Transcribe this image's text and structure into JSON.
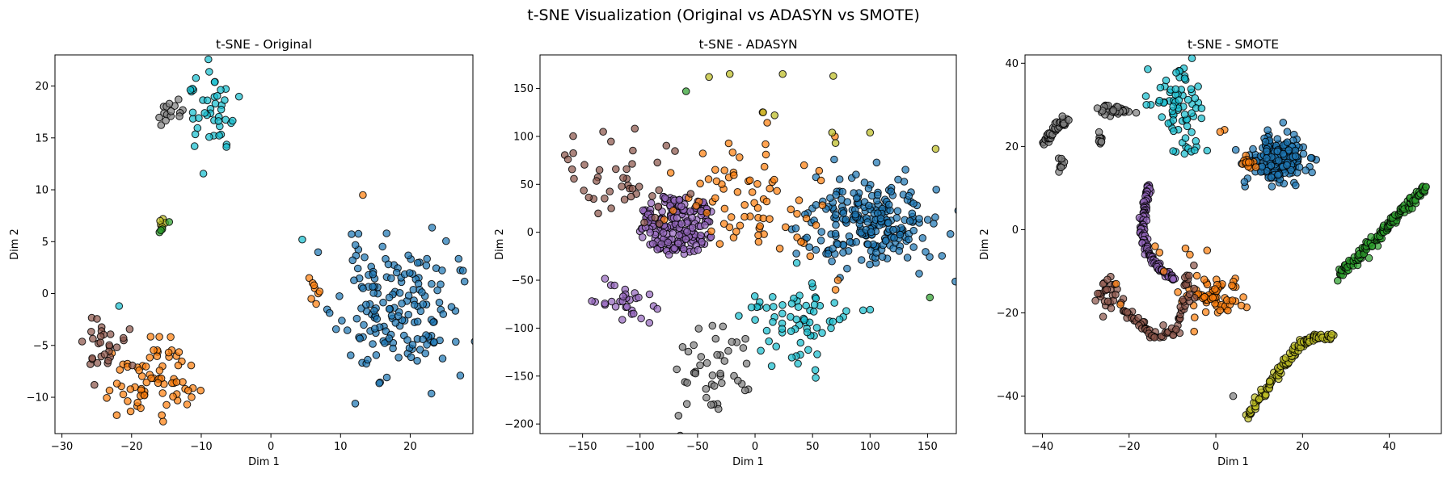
{
  "suptitle": "t-SNE Visualization (Original vs ADASYN vs SMOTE)",
  "colors": {
    "blue": "#1f77b4",
    "orange": "#ff7f0e",
    "green": "#2ca02c",
    "purple": "#9467bd",
    "brown": "#8c564b",
    "gray": "#7f7f7f",
    "olive": "#bcbd22",
    "cyan": "#17becf"
  },
  "chart_data": [
    {
      "type": "scatter",
      "title": "t-SNE - Original",
      "xlabel": "Dim 1",
      "ylabel": "Dim 2",
      "xlim": [
        -31,
        29
      ],
      "ylim": [
        -13.5,
        23
      ],
      "xticks": [
        -30,
        -20,
        -10,
        0,
        10,
        20
      ],
      "yticks": [
        -10,
        -5,
        0,
        5,
        10,
        15,
        20
      ],
      "grid": false,
      "clusters": [
        {
          "color": "blue",
          "kind": "blob",
          "cx": 18,
          "cy": -1.5,
          "sx": 4.2,
          "sy": 3.2,
          "n": 170,
          "seed": 11
        },
        {
          "color": "orange",
          "kind": "blob",
          "cx": -17,
          "cy": -8.2,
          "sx": 3.0,
          "sy": 1.7,
          "n": 75,
          "seed": 12
        },
        {
          "color": "brown",
          "kind": "blob",
          "cx": -24.5,
          "cy": -5.2,
          "sx": 1.8,
          "sy": 1.3,
          "n": 30,
          "seed": 13
        },
        {
          "color": "cyan",
          "kind": "blob",
          "cx": -8.5,
          "cy": 17.5,
          "sx": 1.8,
          "sy": 2.2,
          "n": 45,
          "seed": 14
        },
        {
          "color": "gray",
          "kind": "blob",
          "cx": -14.5,
          "cy": 17.5,
          "sx": 0.9,
          "sy": 1.0,
          "n": 15,
          "seed": 15
        },
        {
          "color": "orange",
          "kind": "points",
          "x": [
            5.5,
            6.0,
            6.3,
            6.8,
            5.8,
            6.5,
            6.2,
            7.0,
            13.2
          ],
          "y": [
            1.5,
            1.0,
            0.5,
            0.0,
            -0.5,
            -1.0,
            0.8,
            0.2,
            9.5
          ]
        },
        {
          "color": "olive",
          "kind": "points",
          "x": [
            -15.8,
            -15.5,
            -15.2,
            -15.9,
            -15.6
          ],
          "y": [
            6.6,
            7.2,
            6.8,
            7.0,
            6.4
          ]
        },
        {
          "color": "green",
          "kind": "points",
          "x": [
            -14.6,
            -15.6,
            -16.0,
            -15.8
          ],
          "y": [
            6.9,
            6.2,
            5.9,
            6.1
          ]
        },
        {
          "color": "cyan",
          "kind": "points",
          "x": [
            4.5,
            -21.8
          ],
          "y": [
            5.2,
            -1.2
          ]
        }
      ]
    },
    {
      "type": "scatter",
      "title": "t-SNE - ADASYN",
      "xlabel": "Dim 1",
      "ylabel": "Dim 2",
      "xlim": [
        -187,
        175
      ],
      "ylim": [
        -210,
        185
      ],
      "xticks": [
        -150,
        -100,
        -50,
        0,
        50,
        100,
        150
      ],
      "yticks": [
        -200,
        -150,
        -100,
        -50,
        0,
        50,
        100,
        150
      ],
      "grid": false,
      "clusters": [
        {
          "color": "blue",
          "kind": "blob",
          "cx": 100,
          "cy": 10,
          "sx": 30,
          "sy": 25,
          "n": 230,
          "seed": 21
        },
        {
          "color": "purple",
          "kind": "disc",
          "cx": -68,
          "cy": 8,
          "r": 33,
          "n": 200,
          "seed": 22
        },
        {
          "color": "purple",
          "kind": "blob",
          "cx": -118,
          "cy": -73,
          "sx": 15,
          "sy": 12,
          "n": 30,
          "seed": 23
        },
        {
          "color": "orange",
          "kind": "blob",
          "cx": -8,
          "cy": 30,
          "sx": 35,
          "sy": 30,
          "n": 75,
          "seed": 24
        },
        {
          "color": "brown",
          "kind": "blob",
          "cx": -125,
          "cy": 50,
          "sx": 30,
          "sy": 28,
          "n": 45,
          "seed": 25
        },
        {
          "color": "cyan",
          "kind": "blob",
          "cx": 40,
          "cy": -95,
          "sx": 27,
          "sy": 25,
          "n": 70,
          "seed": 26
        },
        {
          "color": "gray",
          "kind": "blob",
          "cx": -35,
          "cy": -145,
          "sx": 20,
          "sy": 25,
          "n": 45,
          "seed": 27
        },
        {
          "color": "olive",
          "kind": "points",
          "x": [
            -40,
            -22,
            24,
            68,
            7,
            17,
            67,
            70,
            100,
            157
          ],
          "y": [
            162,
            165,
            165,
            163,
            125,
            122,
            104,
            93,
            104,
            87
          ]
        },
        {
          "color": "green",
          "kind": "points",
          "x": [
            -60,
            152
          ],
          "y": [
            147,
            -68
          ]
        },
        {
          "color": "orange",
          "kind": "points",
          "x": [
            72,
            70,
            48,
            40
          ],
          "y": [
            -50,
            -60,
            -25,
            -10
          ]
        }
      ]
    },
    {
      "type": "scatter",
      "title": "t-SNE - SMOTE",
      "xlabel": "Dim 1",
      "ylabel": "Dim 2",
      "xlim": [
        -44,
        52
      ],
      "ylim": [
        -49,
        42
      ],
      "xticks": [
        -40,
        -20,
        0,
        20,
        40
      ],
      "yticks": [
        -40,
        -20,
        0,
        20,
        40
      ],
      "grid": false,
      "clusters": [
        {
          "color": "blue",
          "kind": "blob",
          "cx": 14.5,
          "cy": 17,
          "sx": 3.0,
          "sy": 2.8,
          "n": 220,
          "seed": 31
        },
        {
          "color": "green",
          "kind": "line",
          "x0": 28.5,
          "y0": -11,
          "x1": 48.5,
          "y1": 10.5,
          "n": 150,
          "jitter": 0.5,
          "seed": 32
        },
        {
          "color": "olive",
          "kind": "curve",
          "pts": [
            [
              7,
              -45
            ],
            [
              12,
              -38
            ],
            [
              16,
              -32
            ],
            [
              19,
              -28
            ],
            [
              22,
              -26
            ],
            [
              27,
              -25.5
            ]
          ],
          "n": 130,
          "jitter": 0.5,
          "seed": 33
        },
        {
          "color": "purple",
          "kind": "curve",
          "pts": [
            [
              -15.5,
              11
            ],
            [
              -16.5,
              5
            ],
            [
              -17,
              0
            ],
            [
              -16,
              -5
            ],
            [
              -13,
              -9.5
            ],
            [
              -9.5,
              -12
            ]
          ],
          "n": 120,
          "jitter": 0.35,
          "seed": 34
        },
        {
          "color": "cyan",
          "kind": "blob",
          "cx": -8,
          "cy": 29,
          "sx": 2.6,
          "sy": 5.2,
          "n": 70,
          "seed": 35
        },
        {
          "color": "gray",
          "kind": "curve",
          "pts": [
            [
              -40,
              20.5
            ],
            [
              -38,
              22.5
            ],
            [
              -36,
              25
            ],
            [
              -34.5,
              26.5
            ]
          ],
          "n": 45,
          "jitter": 0.45,
          "seed": 36
        },
        {
          "color": "gray",
          "kind": "blob",
          "cx": -23,
          "cy": 28.8,
          "sx": 1.6,
          "sy": 0.6,
          "n": 35,
          "seed": 37
        },
        {
          "color": "gray",
          "kind": "blob",
          "cx": -26.5,
          "cy": 21.5,
          "sx": 0.4,
          "sy": 0.7,
          "n": 10,
          "seed": 38
        },
        {
          "color": "gray",
          "kind": "blob",
          "cx": -35.5,
          "cy": 15.8,
          "sx": 0.8,
          "sy": 0.8,
          "n": 10,
          "seed": 39
        },
        {
          "color": "orange",
          "kind": "blob",
          "cx": -1,
          "cy": -15.5,
          "sx": 3.2,
          "sy": 2.2,
          "n": 70,
          "seed": 40
        },
        {
          "color": "brown",
          "kind": "curve",
          "pts": [
            [
              -21,
              -19
            ],
            [
              -17,
              -23
            ],
            [
              -14,
              -26
            ],
            [
              -9,
              -24
            ],
            [
              -7,
              -17
            ],
            [
              -6,
              -10
            ]
          ],
          "n": 70,
          "jitter": 0.6,
          "seed": 41
        },
        {
          "color": "brown",
          "kind": "blob",
          "cx": -25,
          "cy": -15,
          "sx": 1.5,
          "sy": 1.8,
          "n": 25,
          "seed": 42
        },
        {
          "color": "orange",
          "kind": "blob",
          "cx": 7,
          "cy": 16,
          "sx": 1.0,
          "sy": 0.8,
          "n": 15,
          "seed": 43
        },
        {
          "color": "orange",
          "kind": "points",
          "x": [
            -14,
            -13,
            -12,
            -7,
            -6,
            -5,
            -2,
            2,
            1,
            -23,
            -22
          ],
          "y": [
            -4,
            -5.5,
            -10,
            -4.5,
            -6,
            -24.5,
            -5,
            24,
            23.5,
            -13,
            -18
          ]
        },
        {
          "color": "cyan",
          "kind": "points",
          "x": [
            -15,
            -12,
            -13,
            -16,
            -7,
            -2
          ],
          "y": [
            30,
            30.5,
            31,
            30,
            22,
            19
          ]
        },
        {
          "color": "gray",
          "kind": "points",
          "x": [
            4
          ],
          "y": [
            -40
          ]
        },
        {
          "color": "brown",
          "kind": "points",
          "x": [
            -26,
            -25
          ],
          "y": [
            -13,
            -12
          ]
        }
      ]
    }
  ]
}
